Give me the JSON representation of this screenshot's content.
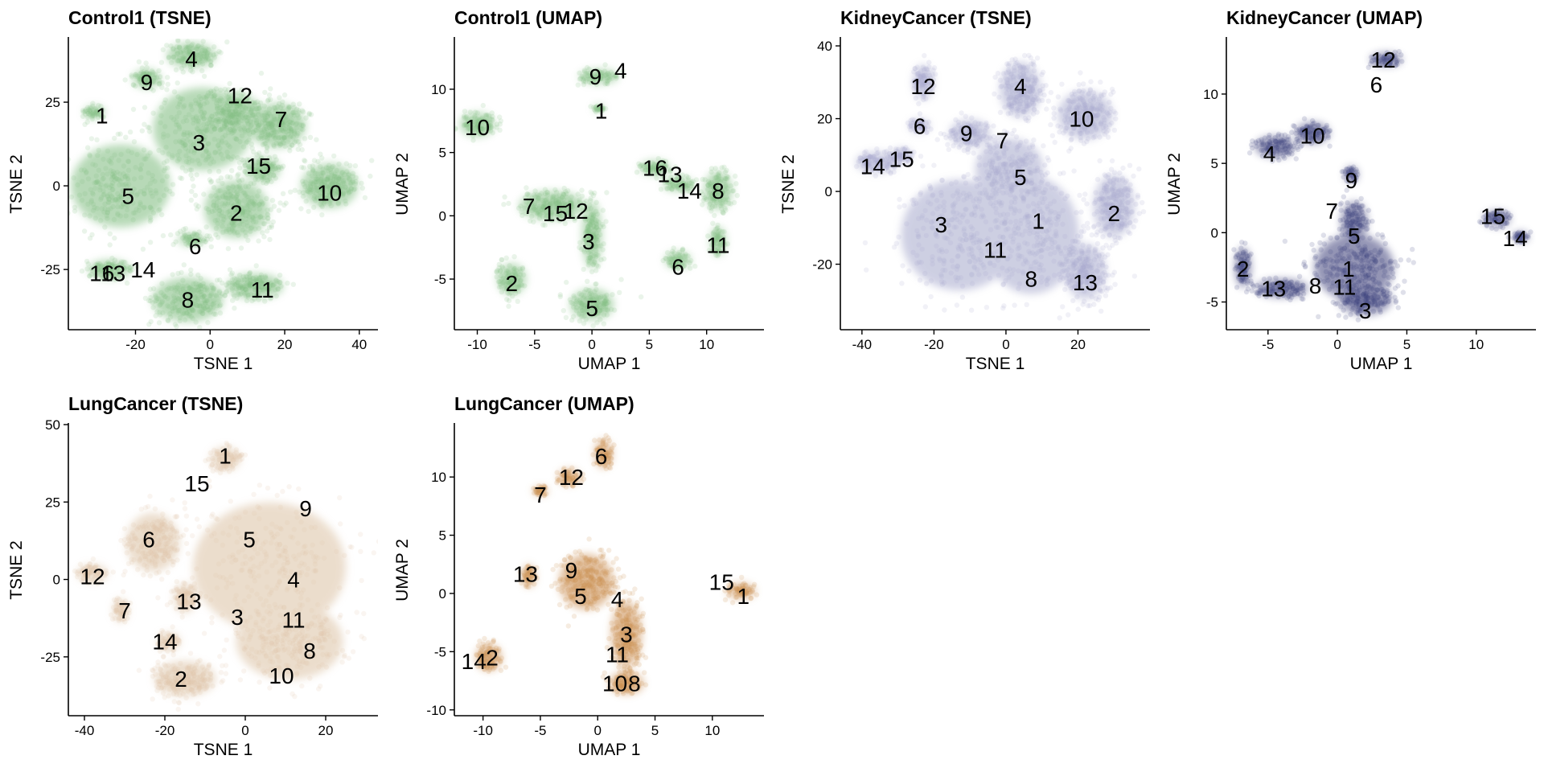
{
  "chart_data": [
    {
      "type": "scatter",
      "title": "Control1 (TSNE)",
      "xlabel": "TSNE 1",
      "ylabel": "TSNE 2",
      "xlim": [
        -38,
        45
      ],
      "ylim": [
        -43,
        44
      ],
      "xticks": [
        -20,
        0,
        20,
        40
      ],
      "yticks": [
        -25,
        0,
        25
      ],
      "point_color": "#7dbb7d",
      "blobs": [
        {
          "x": -31,
          "y": 22,
          "rx": 3,
          "ry": 2
        },
        {
          "x": -5,
          "y": 39,
          "rx": 7,
          "ry": 4
        },
        {
          "x": -17,
          "y": 32,
          "rx": 4,
          "ry": 3
        },
        {
          "x": -2,
          "y": 17,
          "rx": 14,
          "ry": 13
        },
        {
          "x": 6,
          "y": 22,
          "rx": 8,
          "ry": 6
        },
        {
          "x": 18,
          "y": 18,
          "rx": 8,
          "ry": 7
        },
        {
          "x": -24,
          "y": 0,
          "rx": 14,
          "ry": 13
        },
        {
          "x": 7,
          "y": -7,
          "rx": 9,
          "ry": 9
        },
        {
          "x": 14,
          "y": 5,
          "rx": 5,
          "ry": 4
        },
        {
          "x": 32,
          "y": 0,
          "rx": 8,
          "ry": 7
        },
        {
          "x": -5,
          "y": -16,
          "rx": 4,
          "ry": 2
        },
        {
          "x": -27,
          "y": -25,
          "rx": 6,
          "ry": 3
        },
        {
          "x": -6,
          "y": -34,
          "rx": 10,
          "ry": 7
        },
        {
          "x": 12,
          "y": -30,
          "rx": 8,
          "ry": 4
        }
      ],
      "labels": [
        {
          "text": "1",
          "x": -29,
          "y": 21
        },
        {
          "text": "4",
          "x": -5,
          "y": 38
        },
        {
          "text": "9",
          "x": -17,
          "y": 31
        },
        {
          "text": "12",
          "x": 8,
          "y": 27
        },
        {
          "text": "7",
          "x": 19,
          "y": 20
        },
        {
          "text": "3",
          "x": -3,
          "y": 13
        },
        {
          "text": "15",
          "x": 13,
          "y": 6
        },
        {
          "text": "5",
          "x": -22,
          "y": -3
        },
        {
          "text": "10",
          "x": 32,
          "y": -2
        },
        {
          "text": "2",
          "x": 7,
          "y": -8
        },
        {
          "text": "6",
          "x": -4,
          "y": -18
        },
        {
          "text": "16",
          "x": -29,
          "y": -26
        },
        {
          "text": "13",
          "x": -26,
          "y": -26
        },
        {
          "text": "14",
          "x": -18,
          "y": -25
        },
        {
          "text": "8",
          "x": -6,
          "y": -34
        },
        {
          "text": "11",
          "x": 14,
          "y": -31
        }
      ]
    },
    {
      "type": "scatter",
      "title": "Control1 (UMAP)",
      "xlabel": "UMAP 1",
      "ylabel": "UMAP 2",
      "xlim": [
        -12,
        15
      ],
      "ylim": [
        -9,
        14
      ],
      "xticks": [
        -10,
        -5,
        0,
        5,
        10
      ],
      "yticks": [
        -5,
        0,
        5,
        10
      ],
      "point_color": "#7dbb7d",
      "blobs": [
        {
          "x": -10,
          "y": 7.2,
          "rx": 1.6,
          "ry": 1.0
        },
        {
          "x": 0.6,
          "y": 11,
          "rx": 1.8,
          "ry": 0.6
        },
        {
          "x": 0.6,
          "y": 8.5,
          "rx": 0.5,
          "ry": 0.3
        },
        {
          "x": -7,
          "y": -5,
          "rx": 1.3,
          "ry": 1.3
        },
        {
          "x": -3.5,
          "y": 0.8,
          "rx": 3.0,
          "ry": 1.2
        },
        {
          "x": 0,
          "y": -1.5,
          "rx": 0.9,
          "ry": 2.8
        },
        {
          "x": 0,
          "y": -7,
          "rx": 2.0,
          "ry": 1.3
        },
        {
          "x": 5.5,
          "y": 3.8,
          "rx": 1.4,
          "ry": 0.6
        },
        {
          "x": 7.5,
          "y": 2.5,
          "rx": 1.4,
          "ry": 0.6
        },
        {
          "x": 11,
          "y": 2,
          "rx": 1.3,
          "ry": 1.6
        },
        {
          "x": 11,
          "y": -2,
          "rx": 0.7,
          "ry": 1.2
        },
        {
          "x": 7.5,
          "y": -3.5,
          "rx": 1.2,
          "ry": 0.7
        }
      ],
      "labels": [
        {
          "text": "9",
          "x": 0.3,
          "y": 11
        },
        {
          "text": "4",
          "x": 2.5,
          "y": 11.5
        },
        {
          "text": "1",
          "x": 0.8,
          "y": 8.3
        },
        {
          "text": "10",
          "x": -10,
          "y": 7
        },
        {
          "text": "16",
          "x": 5.5,
          "y": 3.8
        },
        {
          "text": "13",
          "x": 6.8,
          "y": 3.3
        },
        {
          "text": "14",
          "x": 8.5,
          "y": 2
        },
        {
          "text": "8",
          "x": 11,
          "y": 2
        },
        {
          "text": "7",
          "x": -5.5,
          "y": 0.8
        },
        {
          "text": "15",
          "x": -3.2,
          "y": 0.2
        },
        {
          "text": "12",
          "x": -1.4,
          "y": 0.4
        },
        {
          "text": "3",
          "x": -0.3,
          "y": -2
        },
        {
          "text": "11",
          "x": 11,
          "y": -2.3
        },
        {
          "text": "6",
          "x": 7.5,
          "y": -4
        },
        {
          "text": "2",
          "x": -7,
          "y": -5.3
        },
        {
          "text": "5",
          "x": 0,
          "y": -7.3
        }
      ]
    },
    {
      "type": "scatter",
      "title": "KidneyCancer (TSNE)",
      "xlabel": "TSNE 1",
      "ylabel": "TSNE 2",
      "xlim": [
        -46,
        40
      ],
      "ylim": [
        -38,
        42
      ],
      "xticks": [
        -40,
        -20,
        0,
        20
      ],
      "yticks": [
        -20,
        0,
        20,
        40
      ],
      "point_color": "#a6a8cc",
      "blobs": [
        {
          "x": -23,
          "y": 30,
          "rx": 3,
          "ry": 5
        },
        {
          "x": 4,
          "y": 28,
          "rx": 6,
          "ry": 8
        },
        {
          "x": 22,
          "y": 21,
          "rx": 8,
          "ry": 7
        },
        {
          "x": -24,
          "y": 18,
          "rx": 3,
          "ry": 2
        },
        {
          "x": -10,
          "y": 16,
          "rx": 6,
          "ry": 4
        },
        {
          "x": -36,
          "y": 8,
          "rx": 6,
          "ry": 3
        },
        {
          "x": -29,
          "y": 10,
          "rx": 3,
          "ry": 2
        },
        {
          "x": 1,
          "y": 6,
          "rx": 10,
          "ry": 9
        },
        {
          "x": -13,
          "y": -12,
          "rx": 17,
          "ry": 16
        },
        {
          "x": 7,
          "y": -12,
          "rx": 14,
          "ry": 17
        },
        {
          "x": 22,
          "y": -22,
          "rx": 6,
          "ry": 8
        },
        {
          "x": 30,
          "y": -4,
          "rx": 6,
          "ry": 9
        }
      ],
      "labels": [
        {
          "text": "12",
          "x": -23,
          "y": 29
        },
        {
          "text": "4",
          "x": 4,
          "y": 29
        },
        {
          "text": "10",
          "x": 21,
          "y": 20
        },
        {
          "text": "6",
          "x": -24,
          "y": 18
        },
        {
          "text": "9",
          "x": -11,
          "y": 16
        },
        {
          "text": "7",
          "x": -1,
          "y": 14
        },
        {
          "text": "15",
          "x": -29,
          "y": 9
        },
        {
          "text": "14",
          "x": -37,
          "y": 7
        },
        {
          "text": "5",
          "x": 4,
          "y": 4
        },
        {
          "text": "2",
          "x": 30,
          "y": -6
        },
        {
          "text": "3",
          "x": -18,
          "y": -9
        },
        {
          "text": "1",
          "x": 9,
          "y": -8
        },
        {
          "text": "11",
          "x": -3,
          "y": -16
        },
        {
          "text": "8",
          "x": 7,
          "y": -24
        },
        {
          "text": "13",
          "x": 22,
          "y": -25
        }
      ]
    },
    {
      "type": "scatter",
      "title": "KidneyCancer (UMAP)",
      "xlabel": "UMAP 1",
      "ylabel": "UMAP 2",
      "xlim": [
        -8,
        14.3
      ],
      "ylim": [
        -7,
        14
      ],
      "xticks": [
        -5,
        0,
        5,
        10
      ],
      "yticks": [
        -5,
        0,
        5,
        10
      ],
      "point_color": "#3a3c78",
      "blobs": [
        {
          "x": 3.5,
          "y": 12.5,
          "rx": 1.2,
          "ry": 0.5
        },
        {
          "x": -4.5,
          "y": 6.2,
          "rx": 1.5,
          "ry": 0.8
        },
        {
          "x": -1.8,
          "y": 7.2,
          "rx": 1.3,
          "ry": 0.8
        },
        {
          "x": 1.0,
          "y": 4.2,
          "rx": 0.5,
          "ry": 0.6
        },
        {
          "x": 11.5,
          "y": 1.0,
          "rx": 1.0,
          "ry": 0.6
        },
        {
          "x": 13.2,
          "y": -0.3,
          "rx": 0.6,
          "ry": 0.4
        },
        {
          "x": -6.8,
          "y": -2.5,
          "rx": 0.6,
          "ry": 1.5
        },
        {
          "x": -4.0,
          "y": -4.0,
          "rx": 2.0,
          "ry": 0.7
        },
        {
          "x": 1.2,
          "y": -2.5,
          "rx": 3.0,
          "ry": 2.5
        },
        {
          "x": 2.0,
          "y": -4.8,
          "rx": 2.0,
          "ry": 1.2
        },
        {
          "x": 1.2,
          "y": 0.8,
          "rx": 1.0,
          "ry": 1.5
        }
      ],
      "labels": [
        {
          "text": "12",
          "x": 3.3,
          "y": 12.5
        },
        {
          "text": "6",
          "x": 2.8,
          "y": 10.7
        },
        {
          "text": "10",
          "x": -1.8,
          "y": 7
        },
        {
          "text": "4",
          "x": -4.9,
          "y": 5.7
        },
        {
          "text": "9",
          "x": 1.0,
          "y": 3.8
        },
        {
          "text": "15",
          "x": 11.2,
          "y": 1.2
        },
        {
          "text": "14",
          "x": 12.8,
          "y": -0.4
        },
        {
          "text": "7",
          "x": -0.4,
          "y": 1.6
        },
        {
          "text": "5",
          "x": 1.2,
          "y": -0.2
        },
        {
          "text": "2",
          "x": -6.8,
          "y": -2.6
        },
        {
          "text": "1",
          "x": 0.8,
          "y": -2.6
        },
        {
          "text": "13",
          "x": -4.6,
          "y": -4.0
        },
        {
          "text": "8",
          "x": -1.6,
          "y": -3.8
        },
        {
          "text": "11",
          "x": 0.5,
          "y": -3.9
        },
        {
          "text": "3",
          "x": 2.0,
          "y": -5.6
        }
      ]
    },
    {
      "type": "scatter",
      "title": "LungCancer (TSNE)",
      "xlabel": "TSNE 1",
      "ylabel": "TSNE 2",
      "xlim": [
        -44,
        33
      ],
      "ylim": [
        -44,
        50
      ],
      "xticks": [
        -40,
        -20,
        0,
        20
      ],
      "yticks": [
        -25,
        0,
        25,
        50
      ],
      "point_color": "#dcc2a4",
      "blobs": [
        {
          "x": -5,
          "y": 39,
          "rx": 4,
          "ry": 4
        },
        {
          "x": -23,
          "y": 12,
          "rx": 7,
          "ry": 10
        },
        {
          "x": -38,
          "y": 2,
          "rx": 4,
          "ry": 3
        },
        {
          "x": -31,
          "y": -10,
          "rx": 2,
          "ry": 4
        },
        {
          "x": -15,
          "y": -6,
          "rx": 3,
          "ry": 5
        },
        {
          "x": -19,
          "y": -20,
          "rx": 3,
          "ry": 3
        },
        {
          "x": -15,
          "y": -32,
          "rx": 8,
          "ry": 6
        },
        {
          "x": 6,
          "y": 4,
          "rx": 20,
          "ry": 22
        },
        {
          "x": 11,
          "y": -20,
          "rx": 14,
          "ry": 13
        }
      ],
      "labels": [
        {
          "text": "1",
          "x": -5,
          "y": 40
        },
        {
          "text": "15",
          "x": -12,
          "y": 31
        },
        {
          "text": "9",
          "x": 15,
          "y": 23
        },
        {
          "text": "6",
          "x": -24,
          "y": 13
        },
        {
          "text": "5",
          "x": 1,
          "y": 13
        },
        {
          "text": "12",
          "x": -38,
          "y": 1
        },
        {
          "text": "4",
          "x": 12,
          "y": 0
        },
        {
          "text": "7",
          "x": -30,
          "y": -10
        },
        {
          "text": "13",
          "x": -14,
          "y": -7
        },
        {
          "text": "3",
          "x": -2,
          "y": -12
        },
        {
          "text": "11",
          "x": 12,
          "y": -13
        },
        {
          "text": "14",
          "x": -20,
          "y": -20
        },
        {
          "text": "8",
          "x": 16,
          "y": -23
        },
        {
          "text": "2",
          "x": -16,
          "y": -32
        },
        {
          "text": "10",
          "x": 9,
          "y": -31
        }
      ]
    },
    {
      "type": "scatter",
      "title": "LungCancer (UMAP)",
      "xlabel": "UMAP 1",
      "ylabel": "UMAP 2",
      "xlim": [
        -12.5,
        14.5
      ],
      "ylim": [
        -10.5,
        14.5
      ],
      "xticks": [
        -10,
        -5,
        0,
        5,
        10
      ],
      "yticks": [
        -10,
        -5,
        0,
        5,
        10
      ],
      "point_color": "#c8884a",
      "blobs": [
        {
          "x": 0.5,
          "y": 12,
          "rx": 0.8,
          "ry": 1.3
        },
        {
          "x": -2.5,
          "y": 10,
          "rx": 1.0,
          "ry": 0.7
        },
        {
          "x": -5,
          "y": 8.8,
          "rx": 0.7,
          "ry": 0.4
        },
        {
          "x": -6,
          "y": 1.5,
          "rx": 0.6,
          "ry": 1.0
        },
        {
          "x": -9.5,
          "y": -5.5,
          "rx": 1.2,
          "ry": 1.2
        },
        {
          "x": -1,
          "y": 1.0,
          "rx": 2.5,
          "ry": 2.5
        },
        {
          "x": 2.5,
          "y": -3.5,
          "rx": 1.4,
          "ry": 3.0
        },
        {
          "x": 2.5,
          "y": -7.7,
          "rx": 1.6,
          "ry": 1.0
        },
        {
          "x": 12.5,
          "y": 0.2,
          "rx": 1.3,
          "ry": 0.7
        }
      ],
      "labels": [
        {
          "text": "6",
          "x": 0.3,
          "y": 11.8
        },
        {
          "text": "12",
          "x": -2.3,
          "y": 10
        },
        {
          "text": "7",
          "x": -5,
          "y": 8.5
        },
        {
          "text": "13",
          "x": -6.3,
          "y": 1.7
        },
        {
          "text": "9",
          "x": -2.3,
          "y": 2
        },
        {
          "text": "5",
          "x": -1.5,
          "y": -0.2
        },
        {
          "text": "4",
          "x": 1.7,
          "y": -0.5
        },
        {
          "text": "15",
          "x": 10.8,
          "y": 1
        },
        {
          "text": "1",
          "x": 12.7,
          "y": -0.2
        },
        {
          "text": "3",
          "x": 2.5,
          "y": -3.5
        },
        {
          "text": "11",
          "x": 1.7,
          "y": -5.2
        },
        {
          "text": "14",
          "x": -10.8,
          "y": -5.8
        },
        {
          "text": "2",
          "x": -9.2,
          "y": -5.5
        },
        {
          "text": "10",
          "x": 1.5,
          "y": -7.7
        },
        {
          "text": "8",
          "x": 3.2,
          "y": -7.7
        }
      ]
    }
  ]
}
